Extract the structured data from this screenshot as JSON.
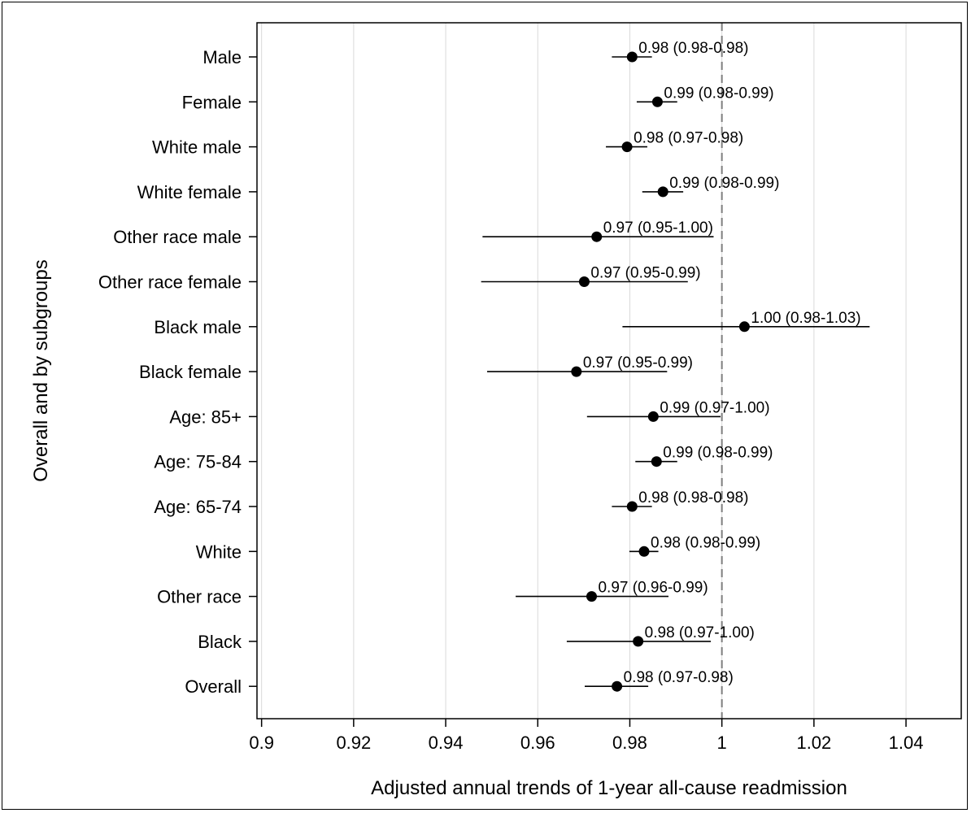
{
  "chart_data": {
    "type": "scatter",
    "subtype": "forest-plot",
    "title": "",
    "xlabel": "Adjusted annual trends of 1-year all-cause readmission",
    "ylabel": "Overall and by subgroups",
    "xlim": [
      0.899,
      1.052
    ],
    "xticks": [
      0.9,
      0.92,
      0.94,
      0.96,
      0.98,
      1,
      1.02,
      1.04
    ],
    "xtick_labels": [
      "0.9",
      "0.92",
      "0.94",
      "0.96",
      "0.98",
      "1",
      "1.02",
      "1.04"
    ],
    "reference_line": {
      "x": 1,
      "style": "dashed"
    },
    "grid": "vertical",
    "legend": "none",
    "rows": [
      {
        "label": "Male",
        "estimate": 0.9805,
        "lower": 0.9761,
        "upper": 0.9848,
        "annotation": "0.98 (0.98-0.98)"
      },
      {
        "label": "Female",
        "estimate": 0.986,
        "lower": 0.9815,
        "upper": 0.9903,
        "annotation": "0.99 (0.98-0.99)"
      },
      {
        "label": "White male",
        "estimate": 0.9794,
        "lower": 0.9748,
        "upper": 0.9838,
        "annotation": "0.98 (0.97-0.98)"
      },
      {
        "label": "White female",
        "estimate": 0.9872,
        "lower": 0.9827,
        "upper": 0.9916,
        "annotation": "0.99 (0.98-0.99)"
      },
      {
        "label": "Other race male",
        "estimate": 0.9728,
        "lower": 0.948,
        "upper": 0.9982,
        "annotation": "0.97 (0.95-1.00)"
      },
      {
        "label": "Other race female",
        "estimate": 0.9701,
        "lower": 0.9477,
        "upper": 0.9926,
        "annotation": "0.97 (0.95-0.99)"
      },
      {
        "label": "Black male",
        "estimate": 1.0049,
        "lower": 0.9784,
        "upper": 1.0321,
        "annotation": "1.00 (0.98-1.03)"
      },
      {
        "label": "Black female",
        "estimate": 0.9684,
        "lower": 0.949,
        "upper": 0.9881,
        "annotation": "0.97 (0.95-0.99)"
      },
      {
        "label": "Age: 85+",
        "estimate": 0.9851,
        "lower": 0.9707,
        "upper": 0.9997,
        "annotation": "0.99 (0.97-1.00)"
      },
      {
        "label": "Age: 75-84",
        "estimate": 0.9858,
        "lower": 0.9812,
        "upper": 0.9903,
        "annotation": "0.99 (0.98-0.99)"
      },
      {
        "label": "Age: 65-74",
        "estimate": 0.9805,
        "lower": 0.9761,
        "upper": 0.9848,
        "annotation": "0.98 (0.98-0.98)"
      },
      {
        "label": "White",
        "estimate": 0.9831,
        "lower": 0.9799,
        "upper": 0.9862,
        "annotation": "0.98 (0.98-0.99)"
      },
      {
        "label": "Other race",
        "estimate": 0.9717,
        "lower": 0.9552,
        "upper": 0.9884,
        "annotation": "0.97 (0.96-0.99)"
      },
      {
        "label": "Black",
        "estimate": 0.9818,
        "lower": 0.9663,
        "upper": 0.9976,
        "annotation": "0.98 (0.97-1.00)"
      },
      {
        "label": "Overall",
        "estimate": 0.9772,
        "lower": 0.9702,
        "upper": 0.984,
        "annotation": "0.98 (0.97-0.98)"
      }
    ],
    "colors": {
      "marker": "#000000",
      "gridline": "#d9d9d9",
      "reference": "#7f7f7f",
      "axis": "#000000"
    }
  }
}
